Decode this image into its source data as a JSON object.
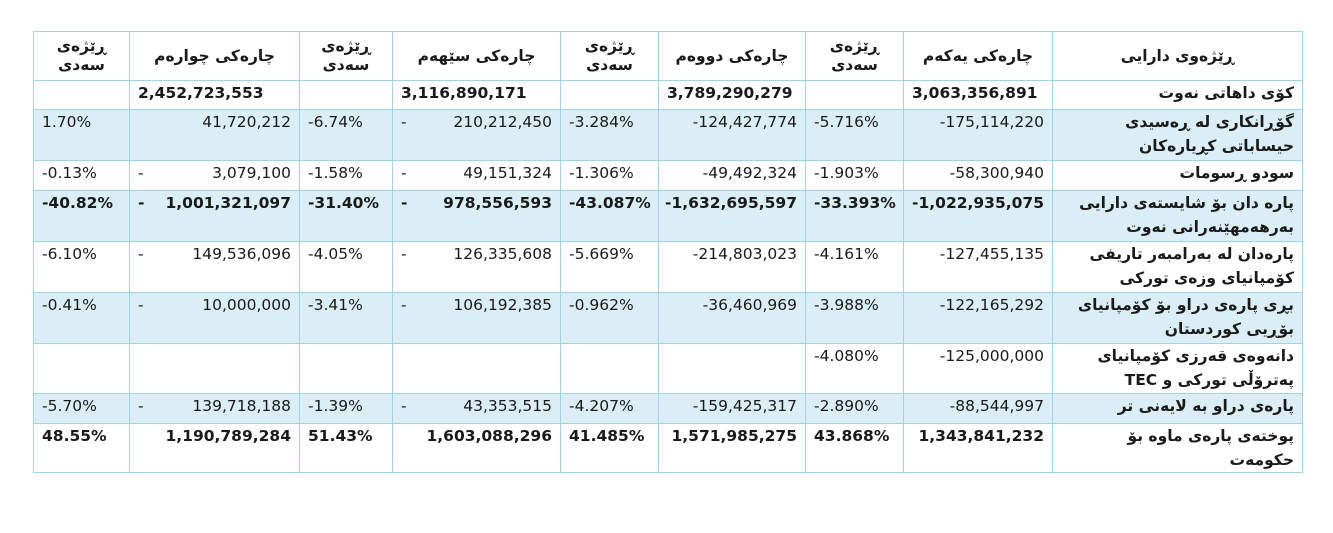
{
  "headers": {
    "category": "ڕێژەوی دارایی",
    "q1": "چارەکی یەکەم",
    "q2": "چارەکی دووەم",
    "q3": "چارەکی سێهەم",
    "q4": "چارەکی چوارەم",
    "pct": "ڕێژەی سەدی"
  },
  "rows": [
    {
      "label": "کۆی داهاتی نەوت",
      "q1": "3,063,356,891",
      "p1": "",
      "q2": "3,789,290,279",
      "p2": "",
      "q3": "3,116,890,171",
      "d3": "",
      "p3": "",
      "q4": "2,452,723,553",
      "d4": "",
      "p4": ""
    },
    {
      "label": "گۆڕانکاری لە ڕەسیدی حیساباتی کڕیارەکان",
      "q1": "-175,114,220",
      "p1": "-5.716%",
      "q2": "-124,427,774",
      "p2": "-3.284%",
      "q3": "210,212,450",
      "d3": "-",
      "p3": "-6.74%",
      "q4": "41,720,212",
      "d4": "",
      "p4": "1.70%"
    },
    {
      "label": "سودو ڕسومات",
      "q1": "-58,300,940",
      "p1": "-1.903%",
      "q2": "-49,492,324",
      "p2": "-1.306%",
      "q3": "49,151,324",
      "d3": "-",
      "p3": "-1.58%",
      "q4": "3,079,100",
      "d4": "-",
      "p4": "-0.13%"
    },
    {
      "label": "پارە دان بۆ شایستەی دارایی بەرهەمهێنەرانی نەوت",
      "q1": "-1,022,935,075",
      "p1": "-33.393%",
      "q2": "-1,632,695,597",
      "p2": "-43.087%",
      "q3": "978,556,593",
      "d3": "-",
      "p3": "-31.40%",
      "q4": "1,001,321,097",
      "d4": "-",
      "p4": "-40.82%"
    },
    {
      "label": "پارەدان لە بەرامبەر تاریفی کۆمپانیای وزەی تورکی",
      "q1": "-127,455,135",
      "p1": "-4.161%",
      "q2": "-214,803,023",
      "p2": "-5.669%",
      "q3": "126,335,608",
      "d3": "-",
      "p3": "-4.05%",
      "q4": "149,536,096",
      "d4": "-",
      "p4": "-6.10%"
    },
    {
      "label": "بڕی پارەی دراو بۆ کۆمپانیای بۆڕیی کوردستان",
      "q1": "-122,165,292",
      "p1": "-3.988%",
      "q2": "-36,460,969",
      "p2": "-0.962%",
      "q3": "106,192,385",
      "d3": "-",
      "p3": "-3.41%",
      "q4": "10,000,000",
      "d4": "-",
      "p4": "-0.41%"
    },
    {
      "label": "دانەوەی قەرزی کۆمپانیای پەترۆڵی تورکی و TEC",
      "q1": "-125,000,000",
      "p1": "-4.080%",
      "q2": "",
      "p2": "",
      "q3": "",
      "d3": "",
      "p3": "",
      "q4": "",
      "d4": "",
      "p4": ""
    },
    {
      "label": "پارەی دراو بە لایەنی تر",
      "q1": "-88,544,997",
      "p1": "-2.890%",
      "q2": "-159,425,317",
      "p2": "-4.207%",
      "q3": "43,353,515",
      "d3": "-",
      "p3": "-1.39%",
      "q4": "139,718,188",
      "d4": "-",
      "p4": "-5.70%"
    },
    {
      "label": "پوختەی پارەی ماوە بۆ حکومەت",
      "q1": "1,343,841,232",
      "p1": "43.868%",
      "q2": "1,571,985,275",
      "p2": "41.485%",
      "q3": "1,603,088,296",
      "d3": "",
      "p3": "51.43%",
      "q4": "1,190,789,284",
      "d4": "",
      "p4": "48.55%"
    }
  ]
}
